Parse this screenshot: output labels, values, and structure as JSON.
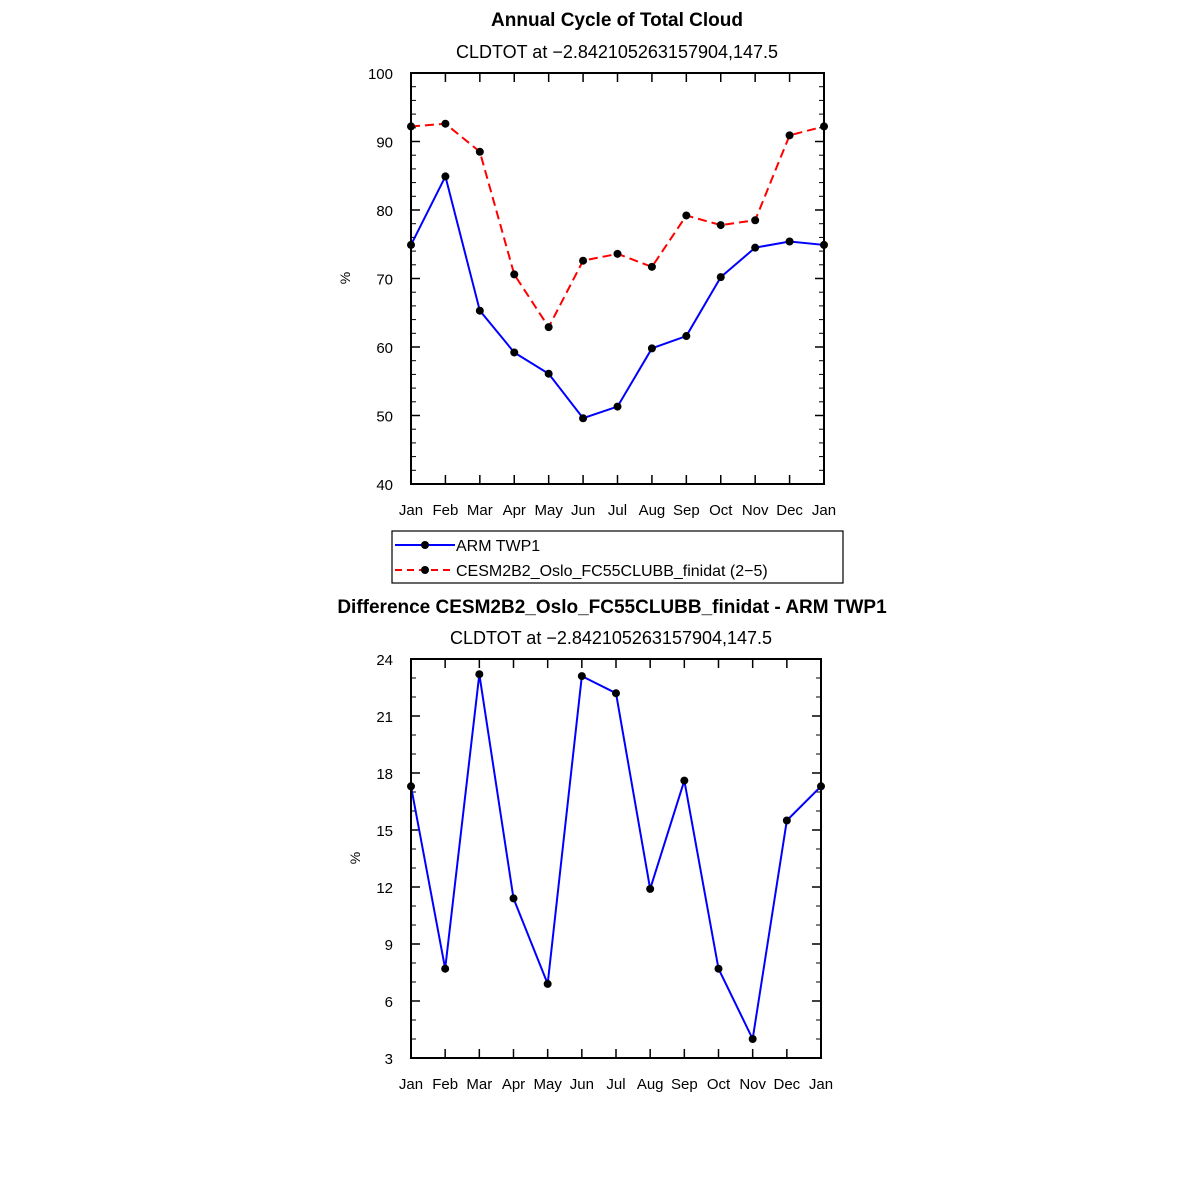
{
  "chart_data": [
    {
      "type": "line",
      "title": "Annual Cycle of Total Cloud",
      "subtitle": "CLDTOT at −2.842105263157904,147.5",
      "xlabel": "",
      "ylabel": "%",
      "categories": [
        "Jan",
        "Feb",
        "Mar",
        "Apr",
        "May",
        "Jun",
        "Jul",
        "Aug",
        "Sep",
        "Oct",
        "Nov",
        "Dec",
        "Jan"
      ],
      "ylim": [
        40,
        100
      ],
      "yticks": [
        40,
        50,
        60,
        70,
        80,
        90,
        100
      ],
      "series": [
        {
          "name": "ARM TWP1",
          "color": "#0000ff",
          "dash": "solid",
          "values": [
            74.9,
            84.9,
            65.3,
            59.2,
            56.1,
            49.6,
            51.3,
            59.8,
            61.6,
            70.2,
            74.5,
            75.4,
            74.9
          ]
        },
        {
          "name": "CESM2B2_Oslo_FC55CLUBB_finidat (2−5)",
          "color": "#ff0000",
          "dash": "dashed",
          "values": [
            92.2,
            92.6,
            88.5,
            70.6,
            62.9,
            72.6,
            73.6,
            71.7,
            79.2,
            77.8,
            78.5,
            90.9,
            92.2
          ]
        }
      ],
      "legend": "bottom"
    },
    {
      "type": "line",
      "title": "Difference CESM2B2_Oslo_FC55CLUBB_finidat - ARM TWP1",
      "subtitle": "CLDTOT at −2.842105263157904,147.5",
      "xlabel": "",
      "ylabel": "%",
      "categories": [
        "Jan",
        "Feb",
        "Mar",
        "Apr",
        "May",
        "Jun",
        "Jul",
        "Aug",
        "Sep",
        "Oct",
        "Nov",
        "Dec",
        "Jan"
      ],
      "ylim": [
        3,
        24
      ],
      "yticks": [
        3,
        6,
        9,
        12,
        15,
        18,
        21,
        24
      ],
      "series": [
        {
          "name": "Difference",
          "color": "#0000ff",
          "dash": "solid",
          "values": [
            17.3,
            7.7,
            23.2,
            11.4,
            6.9,
            23.1,
            22.2,
            11.9,
            17.6,
            7.7,
            4.0,
            15.5,
            17.3
          ]
        }
      ]
    }
  ]
}
